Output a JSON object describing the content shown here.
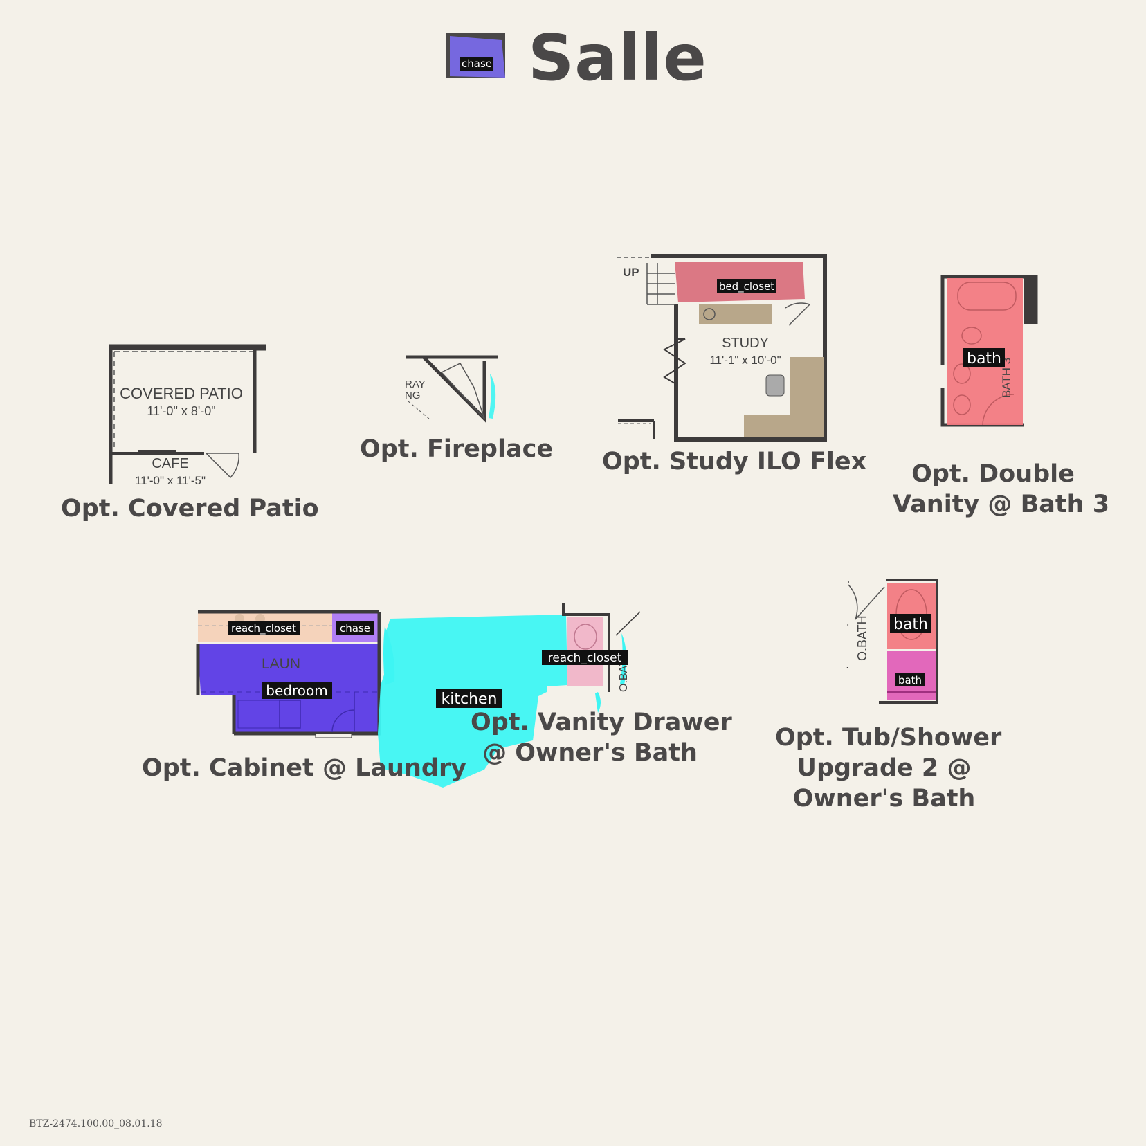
{
  "header": {
    "brand": "Salle"
  },
  "plans": {
    "covered_patio": {
      "caption": "Opt. Covered Patio",
      "room1_name": "COVERED PATIO",
      "room1_dims": "11'-0\" x 8'-0\"",
      "room2_name": "CAFE",
      "room2_dims": "11'-0\" x 11'-5\""
    },
    "fireplace": {
      "caption": "Opt. Fireplace",
      "frag1": "RAY",
      "frag2": "NG"
    },
    "study": {
      "caption": "Opt. Study ILO Flex",
      "up": "UP",
      "room_name": "STUDY",
      "room_dims": "11'-1\" x 10'-0\""
    },
    "double_vanity": {
      "caption_line1": "Opt. Double",
      "caption_line2": "Vanity @ Bath 3",
      "room_label": "BATH 3"
    },
    "laundry_cabinet": {
      "caption": "Opt. Cabinet @ Laundry",
      "room_label": "LAUN"
    },
    "vanity_drawer": {
      "caption_line1": "Opt. Vanity Drawer",
      "caption_line2": "@ Owner's Bath",
      "room_label": "O.BATH"
    },
    "tub_shower": {
      "caption_line1": "Opt. Tub/Shower",
      "caption_line2": "Upgrade 2 @",
      "caption_line3": "Owner's Bath",
      "room_label": "O.BATH"
    }
  },
  "annotations": {
    "logo": "chase",
    "study_closet": "bed_closet",
    "double_vanity": "bath",
    "laundry_counter": "reach_closet",
    "laundry_chase": "chase",
    "laundry_room": "bedroom",
    "kitchen": "kitchen",
    "vanity_drawer": "reach_closet",
    "tub_upper": "bath",
    "tub_lower": "bath"
  },
  "colors": {
    "background": "#f4f1e9",
    "text": "#4a4848",
    "wall": "#3d3b3b",
    "cabinet": "#b8a78a",
    "seg_chase": "#7b6cf0",
    "seg_bed_closet": "#d9717e",
    "seg_bath": "#f27a82",
    "seg_reach_closet": "#f5d3bb",
    "seg_bedroom": "#5a3ae6",
    "seg_kitchen": "#3ef5f3",
    "seg_bath_pink": "#e060b8"
  },
  "footer": {
    "code": "BTZ-2474.100.00_08.01.18"
  }
}
